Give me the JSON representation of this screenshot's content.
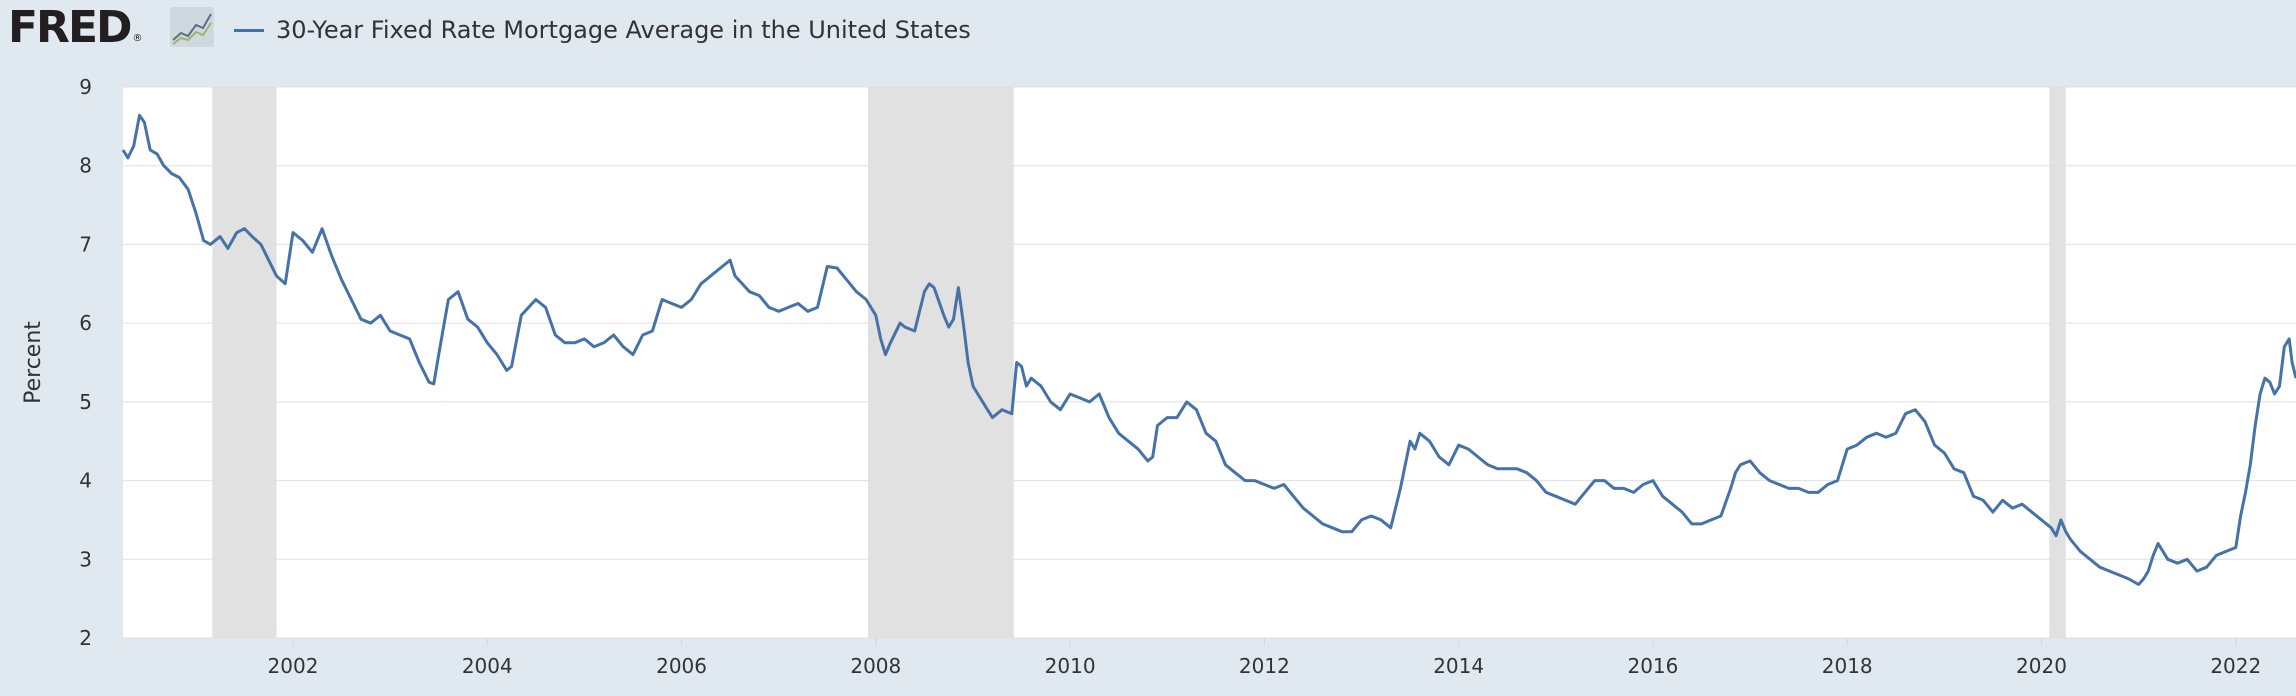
{
  "header": {
    "logo_text": "FRED",
    "logo_reg": "®",
    "series_title": "30-Year Fixed Rate Mortgage Average in the United States"
  },
  "colors": {
    "line": "#4572a7",
    "recession": "#e1e1e1",
    "plot_bg": "#ffffff",
    "page_bg": "#e1e9f0",
    "grid": "#e0e0e0"
  },
  "chart_data": {
    "type": "line",
    "title": "30-Year Fixed Rate Mortgage Average in the United States",
    "ylabel": "Percent",
    "xlabel": "",
    "xlim": [
      2000.25,
      2022.62
    ],
    "ylim": [
      2,
      9
    ],
    "y_ticks": [
      "2",
      "3",
      "4",
      "5",
      "6",
      "7",
      "8",
      "9"
    ],
    "x_ticks": [
      "2002",
      "2004",
      "2006",
      "2008",
      "2010",
      "2012",
      "2014",
      "2016",
      "2018",
      "2020",
      "2022"
    ],
    "grid": "horizontal",
    "recessions": [
      [
        2001.17,
        2001.83
      ],
      [
        2007.92,
        2009.42
      ],
      [
        2020.08,
        2020.25
      ]
    ],
    "series": [
      {
        "name": "30-Year Fixed Rate Mortgage Average in the United States",
        "x": [
          2000.25,
          2000.3,
          2000.36,
          2000.42,
          2000.47,
          2000.53,
          2000.6,
          2000.67,
          2000.75,
          2000.83,
          2000.92,
          2001.0,
          2001.08,
          2001.15,
          2001.25,
          2001.33,
          2001.42,
          2001.5,
          2001.58,
          2001.67,
          2001.75,
          2001.83,
          2001.92,
          2002.0,
          2002.1,
          2002.2,
          2002.3,
          2002.4,
          2002.5,
          2002.6,
          2002.7,
          2002.8,
          2002.9,
          2003.0,
          2003.1,
          2003.2,
          2003.3,
          2003.4,
          2003.45,
          2003.5,
          2003.6,
          2003.7,
          2003.8,
          2003.9,
          2004.0,
          2004.1,
          2004.2,
          2004.25,
          2004.35,
          2004.5,
          2004.6,
          2004.7,
          2004.8,
          2004.9,
          2005.0,
          2005.1,
          2005.2,
          2005.3,
          2005.4,
          2005.5,
          2005.6,
          2005.7,
          2005.8,
          2005.9,
          2006.0,
          2006.1,
          2006.2,
          2006.3,
          2006.4,
          2006.5,
          2006.55,
          2006.7,
          2006.8,
          2006.9,
          2007.0,
          2007.1,
          2007.2,
          2007.3,
          2007.4,
          2007.5,
          2007.6,
          2007.7,
          2007.8,
          2007.9,
          2008.0,
          2008.05,
          2008.1,
          2008.15,
          2008.25,
          2008.3,
          2008.4,
          2008.5,
          2008.55,
          2008.6,
          2008.7,
          2008.75,
          2008.8,
          2008.85,
          2008.9,
          2008.95,
          2009.0,
          2009.05,
          2009.1,
          2009.2,
          2009.3,
          2009.4,
          2009.45,
          2009.5,
          2009.55,
          2009.6,
          2009.7,
          2009.8,
          2009.9,
          2010.0,
          2010.1,
          2010.2,
          2010.3,
          2010.4,
          2010.5,
          2010.6,
          2010.7,
          2010.8,
          2010.85,
          2010.9,
          2011.0,
          2011.1,
          2011.2,
          2011.3,
          2011.4,
          2011.5,
          2011.6,
          2011.7,
          2011.8,
          2011.9,
          2012.0,
          2012.1,
          2012.2,
          2012.3,
          2012.4,
          2012.5,
          2012.6,
          2012.7,
          2012.8,
          2012.9,
          2013.0,
          2013.1,
          2013.2,
          2013.3,
          2013.4,
          2013.5,
          2013.55,
          2013.6,
          2013.7,
          2013.8,
          2013.9,
          2014.0,
          2014.1,
          2014.2,
          2014.3,
          2014.4,
          2014.5,
          2014.6,
          2014.7,
          2014.8,
          2014.9,
          2015.0,
          2015.1,
          2015.2,
          2015.3,
          2015.4,
          2015.5,
          2015.6,
          2015.7,
          2015.8,
          2015.9,
          2016.0,
          2016.1,
          2016.2,
          2016.3,
          2016.4,
          2016.5,
          2016.6,
          2016.7,
          2016.8,
          2016.85,
          2016.9,
          2017.0,
          2017.1,
          2017.2,
          2017.3,
          2017.4,
          2017.5,
          2017.6,
          2017.7,
          2017.8,
          2017.9,
          2018.0,
          2018.1,
          2018.2,
          2018.3,
          2018.4,
          2018.5,
          2018.6,
          2018.7,
          2018.8,
          2018.9,
          2019.0,
          2019.1,
          2019.2,
          2019.3,
          2019.4,
          2019.5,
          2019.6,
          2019.7,
          2019.8,
          2019.9,
          2020.0,
          2020.1,
          2020.15,
          2020.2,
          2020.25,
          2020.3,
          2020.4,
          2020.5,
          2020.6,
          2020.7,
          2020.8,
          2020.9,
          2021.0,
          2021.05,
          2021.1,
          2021.15,
          2021.2,
          2021.3,
          2021.4,
          2021.5,
          2021.6,
          2021.7,
          2021.8,
          2021.9,
          2022.0,
          2022.05,
          2022.1,
          2022.15,
          2022.2,
          2022.25,
          2022.3,
          2022.35,
          2022.4,
          2022.45,
          2022.5,
          2022.55,
          2022.58,
          2022.62
        ],
        "y": [
          8.2,
          8.1,
          8.25,
          8.64,
          8.55,
          8.2,
          8.15,
          8.0,
          7.9,
          7.85,
          7.7,
          7.4,
          7.05,
          7.0,
          7.1,
          6.95,
          7.15,
          7.2,
          7.1,
          7.0,
          6.8,
          6.6,
          6.5,
          7.15,
          7.05,
          6.9,
          7.2,
          6.85,
          6.55,
          6.3,
          6.05,
          6.0,
          6.1,
          5.9,
          5.85,
          5.8,
          5.5,
          5.25,
          5.23,
          5.6,
          6.3,
          6.4,
          6.05,
          5.95,
          5.75,
          5.6,
          5.4,
          5.45,
          6.1,
          6.3,
          6.2,
          5.85,
          5.75,
          5.75,
          5.8,
          5.7,
          5.75,
          5.85,
          5.7,
          5.6,
          5.85,
          5.9,
          6.3,
          6.25,
          6.2,
          6.3,
          6.5,
          6.6,
          6.7,
          6.8,
          6.6,
          6.4,
          6.35,
          6.2,
          6.15,
          6.2,
          6.25,
          6.15,
          6.2,
          6.72,
          6.7,
          6.55,
          6.4,
          6.3,
          6.1,
          5.8,
          5.6,
          5.75,
          6.0,
          5.95,
          5.9,
          6.4,
          6.5,
          6.45,
          6.1,
          5.95,
          6.05,
          6.45,
          6.0,
          5.5,
          5.2,
          5.1,
          5.0,
          4.8,
          4.9,
          4.85,
          5.5,
          5.45,
          5.2,
          5.3,
          5.2,
          5.0,
          4.9,
          5.1,
          5.05,
          5.0,
          5.1,
          4.8,
          4.6,
          4.5,
          4.4,
          4.25,
          4.3,
          4.7,
          4.8,
          4.8,
          5.0,
          4.9,
          4.6,
          4.5,
          4.2,
          4.1,
          4.0,
          4.0,
          3.95,
          3.9,
          3.95,
          3.8,
          3.65,
          3.55,
          3.45,
          3.4,
          3.35,
          3.35,
          3.5,
          3.55,
          3.5,
          3.4,
          3.9,
          4.5,
          4.4,
          4.6,
          4.5,
          4.3,
          4.2,
          4.45,
          4.4,
          4.3,
          4.2,
          4.15,
          4.15,
          4.15,
          4.1,
          4.0,
          3.85,
          3.8,
          3.75,
          3.7,
          3.85,
          4.0,
          4.0,
          3.9,
          3.9,
          3.85,
          3.95,
          4.0,
          3.8,
          3.7,
          3.6,
          3.45,
          3.45,
          3.5,
          3.55,
          3.9,
          4.1,
          4.2,
          4.25,
          4.1,
          4.0,
          3.95,
          3.9,
          3.9,
          3.85,
          3.85,
          3.95,
          4.0,
          4.4,
          4.45,
          4.55,
          4.6,
          4.55,
          4.6,
          4.85,
          4.9,
          4.75,
          4.45,
          4.35,
          4.15,
          4.1,
          3.8,
          3.75,
          3.6,
          3.75,
          3.65,
          3.7,
          3.6,
          3.5,
          3.4,
          3.3,
          3.5,
          3.35,
          3.25,
          3.1,
          3.0,
          2.9,
          2.85,
          2.8,
          2.75,
          2.68,
          2.75,
          2.85,
          3.05,
          3.2,
          3.0,
          2.95,
          3.0,
          2.85,
          2.9,
          3.05,
          3.1,
          3.15,
          3.55,
          3.85,
          4.2,
          4.7,
          5.1,
          5.3,
          5.25,
          5.1,
          5.2,
          5.7,
          5.8,
          5.5,
          5.3
        ]
      }
    ]
  }
}
